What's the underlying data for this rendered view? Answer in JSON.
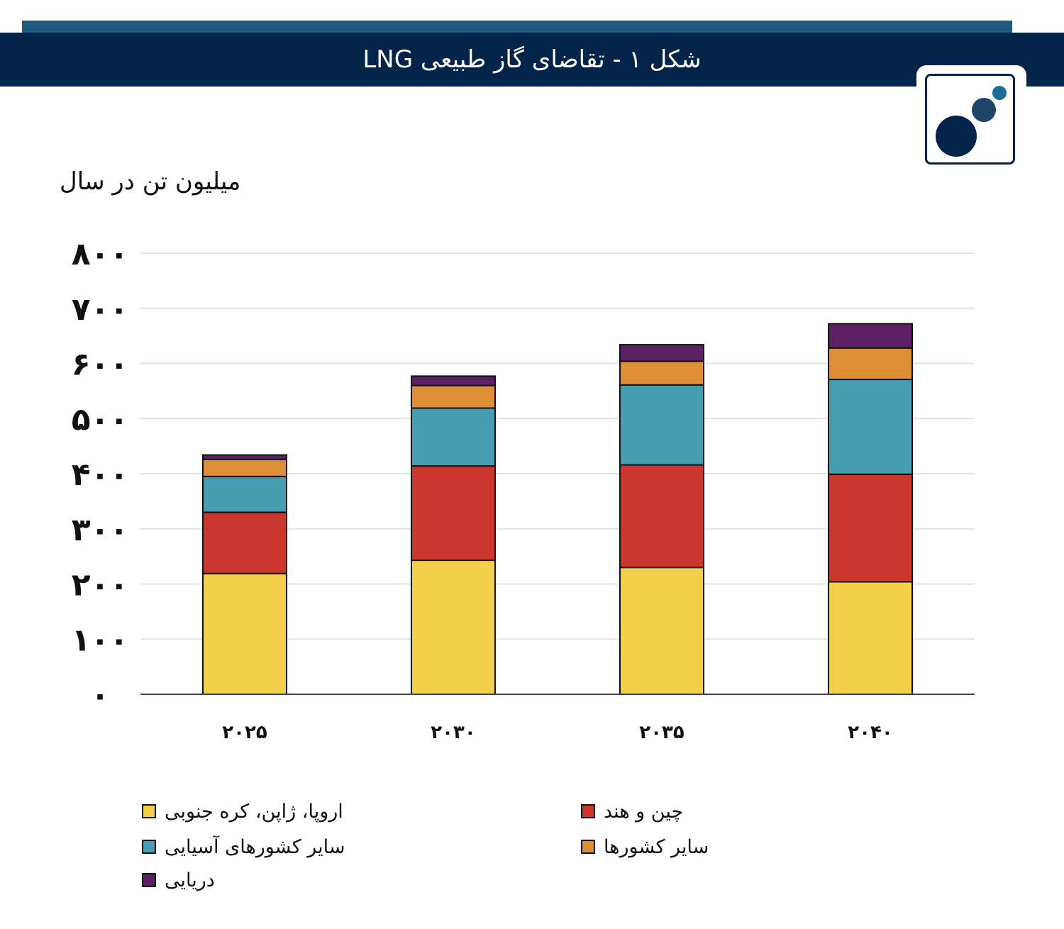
{
  "header": {
    "title": "شکل ۱ - تقاضای گاز طبیعی LNG",
    "band_color": "#02244b",
    "strip_color": "#1d5c82"
  },
  "logo": {
    "icon": "circles-logo-icon"
  },
  "chart_data": {
    "type": "bar",
    "stacked": true,
    "title": "شکل ۱ - تقاضای گاز طبیعی LNG",
    "ylabel": "میلیون تن در سال",
    "xlabel": "",
    "ylim": [
      0,
      800
    ],
    "yticks": [
      0,
      100,
      200,
      300,
      400,
      500,
      600,
      700,
      800
    ],
    "ytick_labels": [
      "۰",
      "۱۰۰",
      "۲۰۰",
      "۳۰۰",
      "۴۰۰",
      "۵۰۰",
      "۶۰۰",
      "۷۰۰",
      "۸۰۰"
    ],
    "categories": [
      "۲۰۲۵",
      "۲۰۳۰",
      "۲۰۳۵",
      "۲۰۴۰"
    ],
    "grid": true,
    "legend_position": "bottom",
    "series": [
      {
        "name": "اروپا، ژاپن، کره جنوبی",
        "color": "#f4d04a",
        "values": [
          219,
          243,
          230,
          204
        ]
      },
      {
        "name": "چین و هند",
        "color": "#cb362d",
        "values": [
          111,
          171,
          186,
          195
        ]
      },
      {
        "name": "سایر کشورهای آسیایی",
        "color": "#479eb3",
        "values": [
          65,
          105,
          145,
          172
        ]
      },
      {
        "name": "سایر کشورها",
        "color": "#de8e34",
        "values": [
          31,
          41,
          43,
          57
        ]
      },
      {
        "name": "دریایی",
        "color": "#5b2163",
        "values": [
          8,
          17,
          30,
          44
        ]
      }
    ]
  }
}
